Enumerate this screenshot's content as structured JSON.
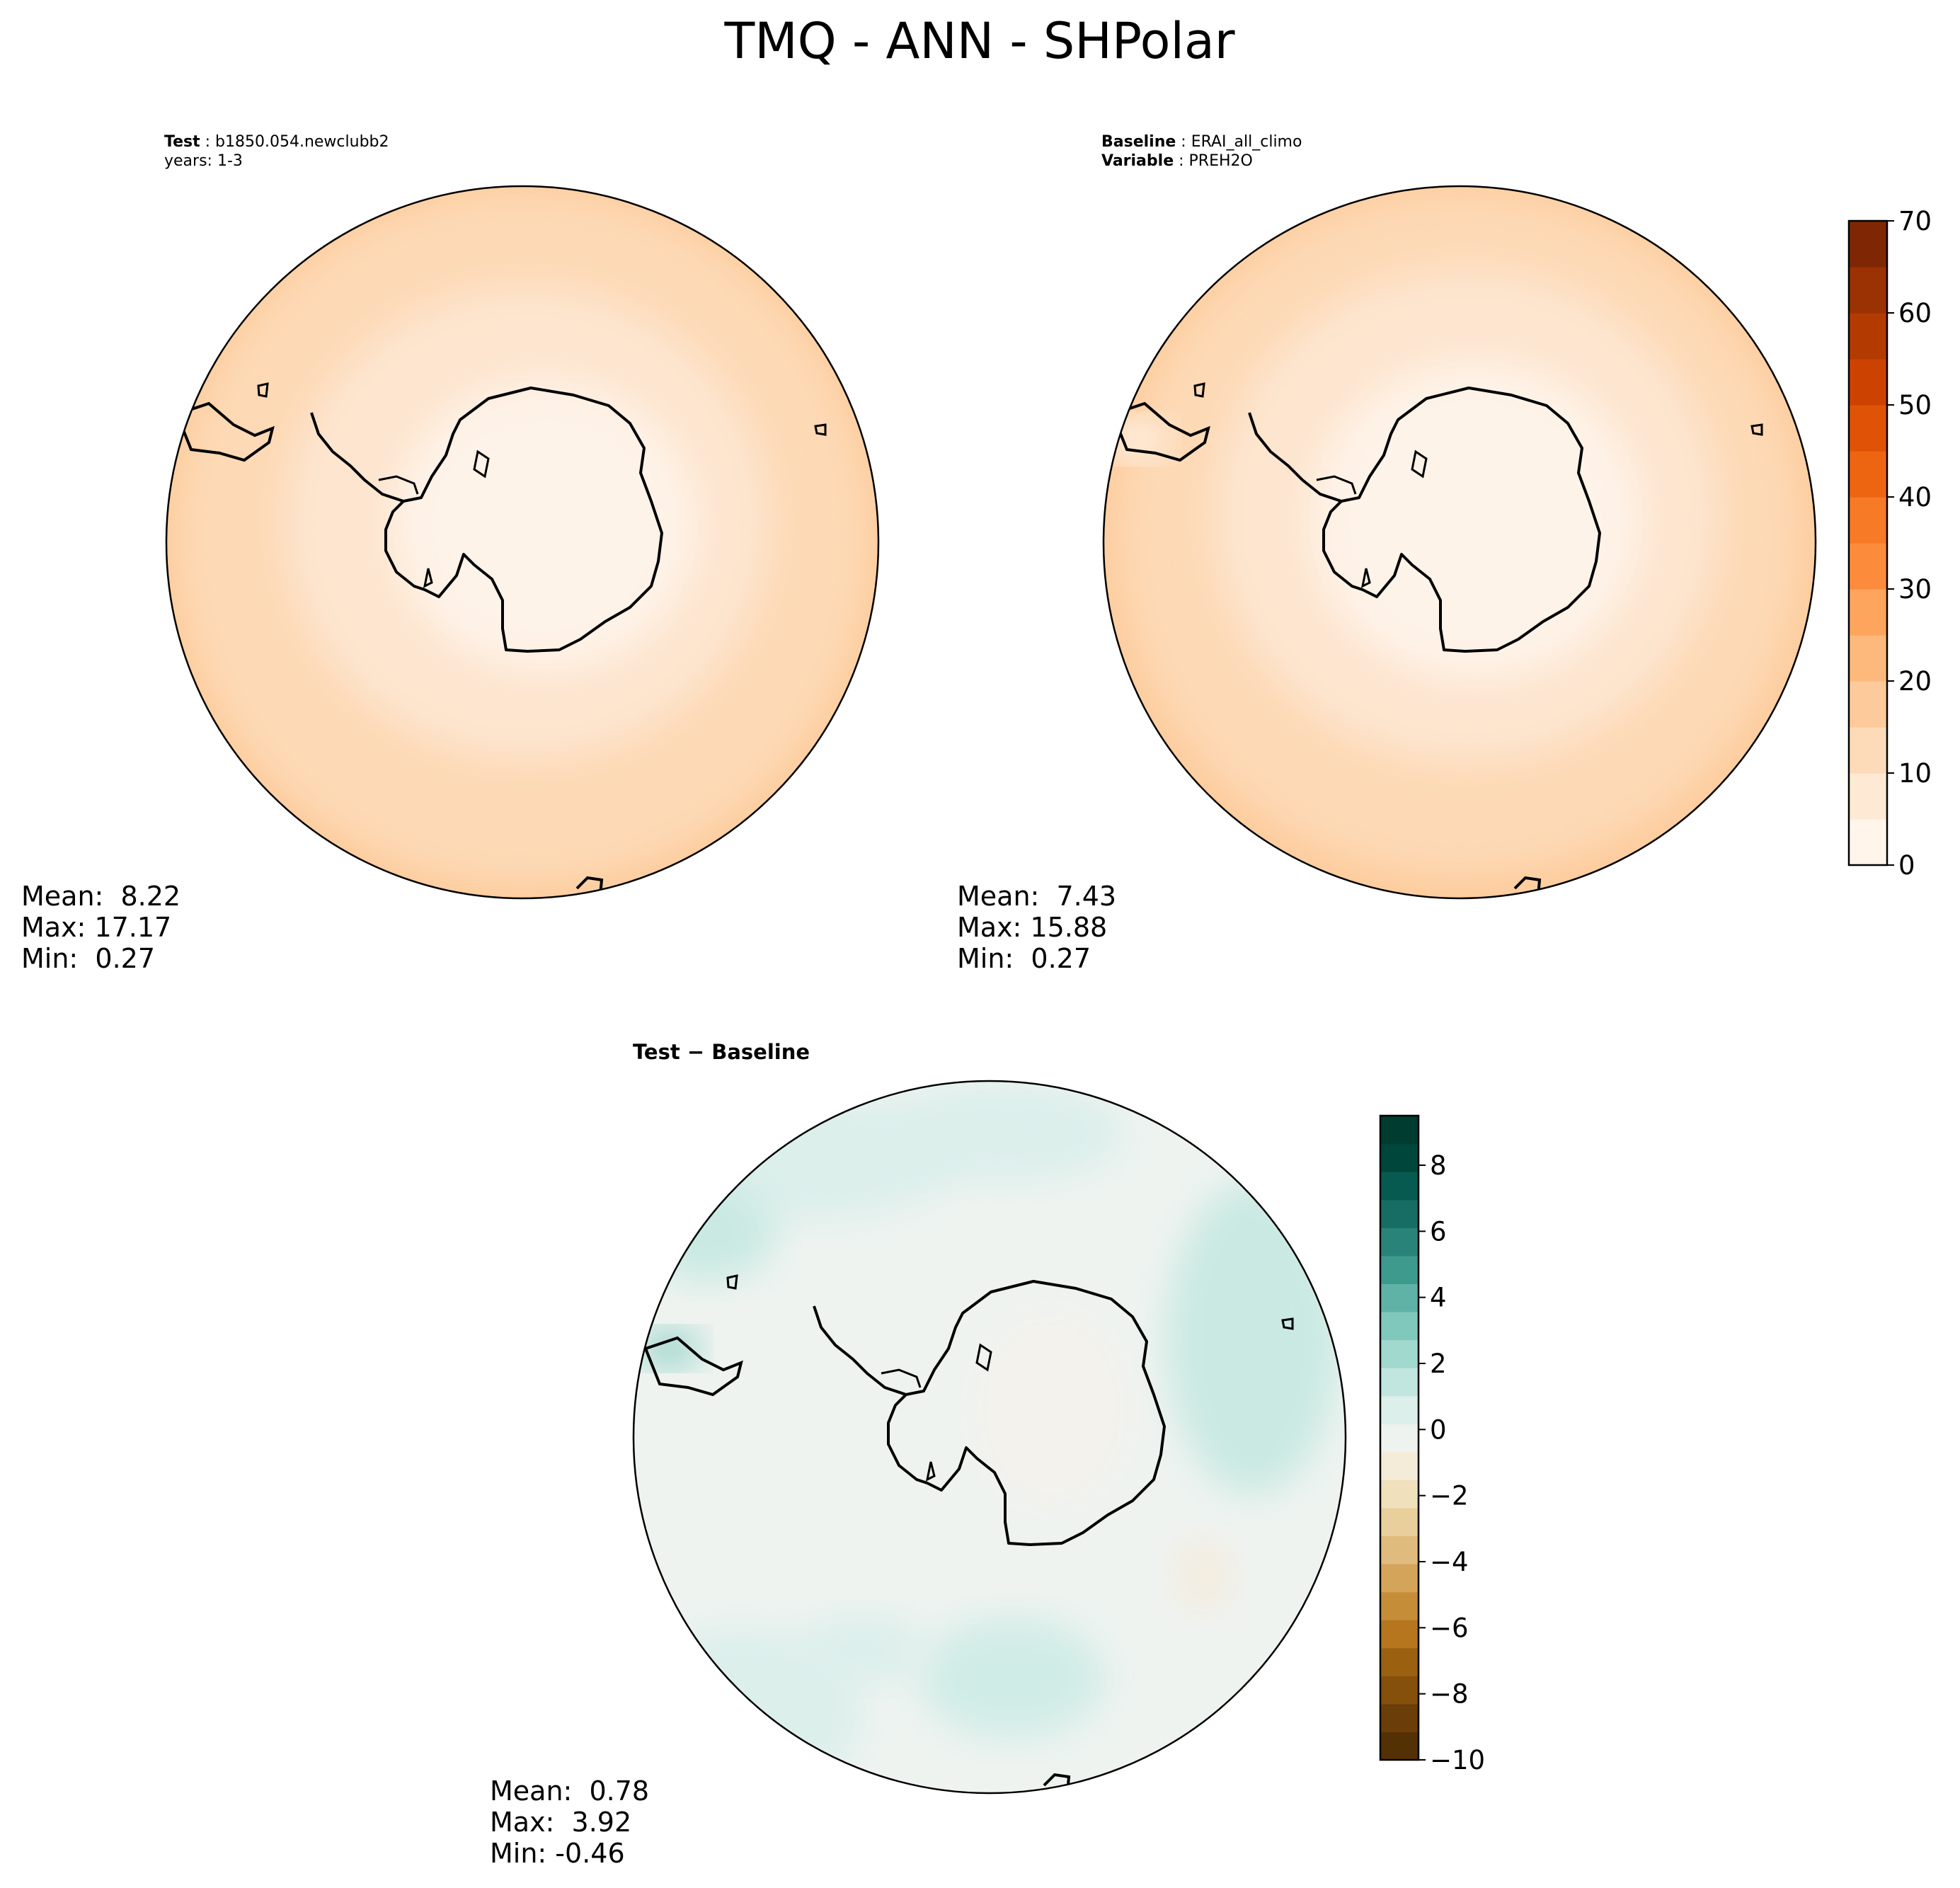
{
  "figure": {
    "title": "TMQ - ANN - SHPolar"
  },
  "chart_data": [
    {
      "type": "heatmap",
      "name": "test",
      "header_lines": [
        {
          "bold": "Test",
          "text": " : b1850.054.newclubb2"
        },
        {
          "bold": "",
          "text": "years: 1-3"
        }
      ],
      "stats": {
        "mean": "Mean:  8.22",
        "max": "Max: 17.17",
        "min": "Min:  0.27"
      },
      "colors": [
        "#fef3e8",
        "#fde5cf",
        "#fdd9b5",
        "#fdc997",
        "#fdb77a"
      ]
    },
    {
      "type": "heatmap",
      "name": "baseline",
      "header_lines": [
        {
          "bold": "Baseline",
          "text": " : ERAI_all_climo"
        },
        {
          "bold": "Variable",
          "text": " : PREH2O"
        }
      ],
      "stats": {
        "mean": "Mean:  7.43",
        "max": "Max: 15.88",
        "min": "Min:  0.27"
      },
      "colorbar": {
        "min": 0,
        "max": 70,
        "ticks": [
          "0",
          "10",
          "20",
          "30",
          "40",
          "50",
          "60",
          "70"
        ],
        "colors": [
          "#fff5eb",
          "#fee9d4",
          "#fddbb8",
          "#fdcb9b",
          "#fdb97c",
          "#fda45d",
          "#fc8c3b",
          "#f77a27",
          "#ee6511",
          "#e05307",
          "#cc4301",
          "#b33b02",
          "#9a3203",
          "#7f2704"
        ]
      }
    },
    {
      "type": "heatmap",
      "name": "difference",
      "header_lines": [
        {
          "bold": "Test − Baseline",
          "text": ""
        }
      ],
      "stats": {
        "mean": "Mean:  0.78",
        "max": "Max:  3.92",
        "min": "Min: -0.46"
      },
      "colorbar": {
        "min": -10,
        "max": 9.5,
        "ticks": [
          "8",
          "6",
          "4",
          "2",
          "0",
          "−2",
          "−4",
          "−6",
          "−8",
          "−10"
        ],
        "tick_values": [
          8,
          6,
          4,
          2,
          0,
          -2,
          -4,
          -6,
          -8,
          -10
        ],
        "colors": [
          "#543005",
          "#6b3d08",
          "#84500b",
          "#9c6110",
          "#b5761d",
          "#c68d38",
          "#d4a45a",
          "#dfbb7d",
          "#e8cf9b",
          "#f0e0bb",
          "#f4ecd8",
          "#eef3f0",
          "#dcefeb",
          "#c0e6df",
          "#a1d9cf",
          "#80c8bb",
          "#5fb2a5",
          "#3f9a8e",
          "#2a8378",
          "#176d63",
          "#075a4f",
          "#01463b",
          "#003c30"
        ]
      }
    }
  ]
}
